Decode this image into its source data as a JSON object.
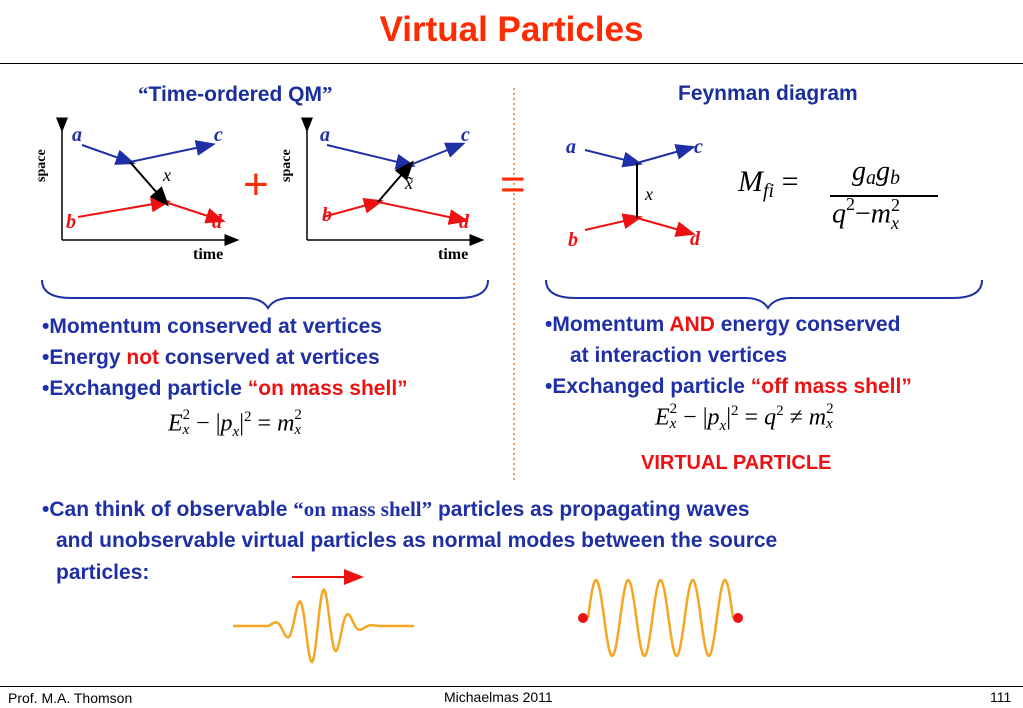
{
  "title": "Virtual Particles",
  "left": {
    "heading_open": "“",
    "heading_text": "Time-ordered QM",
    "heading_close": "”",
    "diagram1": {
      "a": "a",
      "b": "b",
      "c": "c",
      "d": "d",
      "x": "x",
      "yaxis": "space",
      "xaxis": "time"
    },
    "plus": "+",
    "diagram2": {
      "a": "a",
      "b": "b",
      "c": "c",
      "d": "d",
      "x": "x̃",
      "yaxis": "space",
      "xaxis": "time"
    },
    "bullets": [
      {
        "dot": "•",
        "text": "Momentum conserved at vertices"
      },
      {
        "dot": "•",
        "pre": "Energy ",
        "red": "not",
        "post": " conserved at vertices"
      },
      {
        "dot": "•",
        "pre": "Exchanged particle ",
        "red": "“on mass shell”"
      }
    ],
    "equation": {
      "E": "E",
      "sub_x": "x",
      "sup_2": "2",
      "minus": "−",
      "bar_open": "|",
      "p": "p",
      "bar_close": "|",
      "eq": "=",
      "m": "m"
    }
  },
  "equals": "=",
  "right": {
    "heading": "Feynman diagram",
    "diagram": {
      "a": "a",
      "b": "b",
      "c": "c",
      "d": "d",
      "x": "x"
    },
    "matrix_element": {
      "M": "M",
      "sub": "fi",
      "eq": "=",
      "numerator": "g",
      "num_sub_a": "a",
      "num_sub_b": "b",
      "denominator_q": "q",
      "denominator_minus": "−",
      "denominator_m": "m",
      "sup_2": "2",
      "den_sub": "x"
    },
    "bullets": [
      {
        "dot": "•",
        "pre": "Momentum ",
        "red": "AND",
        "post": " energy conserved",
        "line2": "at interaction vertices"
      },
      {
        "dot": "•",
        "pre": "Exchanged particle ",
        "red": "“off mass shell”"
      }
    ],
    "equation": {
      "E": "E",
      "sub_x": "x",
      "sup_2": "2",
      "minus": "−",
      "p": "p",
      "eq": "=",
      "q": "q",
      "neq": "≠",
      "m": "m"
    },
    "virtual_label": "VIRTUAL PARTICLE"
  },
  "bottom": {
    "dot": "•",
    "line1_pre": "Can think of observable ",
    "line1_serif": "“on mass shell”",
    "line1_post": " particles as propagating waves",
    "line2": "and unobservable virtual particles as normal modes between the source",
    "line3": "particles:"
  },
  "footer": {
    "author": "Prof. M.A. Thomson",
    "term": "Michaelmas 2011",
    "page": "111"
  },
  "colors": {
    "title": "#ff2a00",
    "blue": "#1f2fa6",
    "red": "#ee1111",
    "wave": "#f5a623",
    "divider": "#f0a050"
  }
}
